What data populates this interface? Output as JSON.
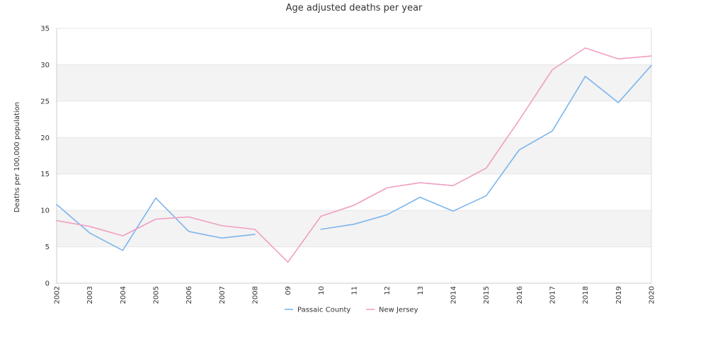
{
  "chart_data": {
    "type": "line",
    "title": "Age adjusted deaths per year",
    "xlabel": "",
    "ylabel": "Deaths per 100,000 population",
    "categories": [
      "2002",
      "2003",
      "2004",
      "2005",
      "2006",
      "2007",
      "2008",
      "09",
      "10",
      "11",
      "12",
      "13",
      "2014",
      "2015",
      "2016",
      "2017",
      "2018",
      "2019",
      "2020"
    ],
    "ylim": [
      0,
      35
    ],
    "yticks": [
      "0",
      "5",
      "10",
      "15",
      "20",
      "25",
      "30",
      "35"
    ],
    "grid": "alternating horizontal bands",
    "legend_position": "bottom-center",
    "series": [
      {
        "name": "Passaic County",
        "color": "#7cb5ec",
        "values": [
          10.8,
          6.9,
          4.5,
          11.7,
          7.1,
          6.2,
          6.7,
          null,
          7.4,
          8.1,
          9.4,
          11.8,
          9.9,
          12.0,
          18.3,
          20.9,
          28.4,
          24.8,
          29.9
        ]
      },
      {
        "name": "New Jersey",
        "color": "#f19ec2",
        "values": [
          8.6,
          7.8,
          6.5,
          8.8,
          9.1,
          7.9,
          7.4,
          2.9,
          9.2,
          10.7,
          13.1,
          13.8,
          13.4,
          15.8,
          22.4,
          29.3,
          32.3,
          30.8,
          31.2
        ]
      }
    ]
  }
}
